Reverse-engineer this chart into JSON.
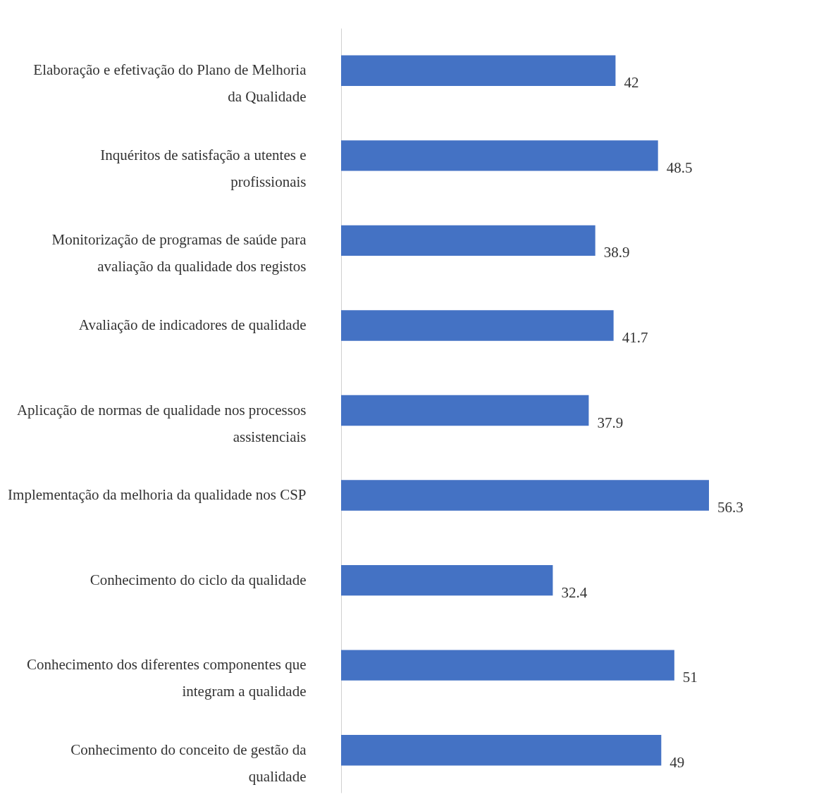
{
  "chart_data": {
    "type": "bar",
    "orientation": "horizontal",
    "data_labels": true,
    "categories": [
      "Elaboração e efetivação do Plano de Melhoria da Qualidade",
      "Inquéritos de satisfação a utentes e profissionais",
      "Monitorização de programas de saúde para avaliação da qualidade dos registos",
      "Avaliação de indicadores de qualidade",
      "Aplicação de normas de qualidade nos processos assistenciais",
      "Implementação da melhoria da qualidade nos CSP",
      "Conhecimento do ciclo da qualidade",
      "Conhecimento dos diferentes componentes que integram a qualidade",
      "Conhecimento do conceito de gestão da qualidade"
    ],
    "values": [
      42,
      48.5,
      38.9,
      41.7,
      37.9,
      56.3,
      32.4,
      51,
      49
    ],
    "color": "#4472c4"
  }
}
